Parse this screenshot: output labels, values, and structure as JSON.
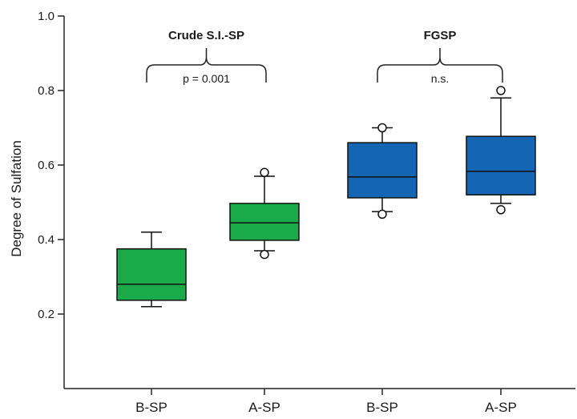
{
  "chart_data": {
    "type": "box",
    "ylabel": "Degree of Sulfation",
    "xlabel": "",
    "ylim": [
      0,
      1.0
    ],
    "y_ticks": [
      {
        "value": 0.2,
        "label": "0.2"
      },
      {
        "value": 0.4,
        "label": "0.4"
      },
      {
        "value": 0.6,
        "label": "0.6"
      },
      {
        "value": 0.8,
        "label": "0.8"
      },
      {
        "value": 1.0,
        "label": "1.0"
      }
    ],
    "categories": [
      "B-SP",
      "A-SP",
      "B-SP",
      "A-SP"
    ],
    "boxes": [
      {
        "category": "B-SP",
        "group": "Crude S.I.-SP",
        "whisker_low": 0.22,
        "q1": 0.237,
        "median": 0.28,
        "q3": 0.375,
        "whisker_high": 0.42,
        "outliers": [],
        "color": "#1aaa4a"
      },
      {
        "category": "A-SP",
        "group": "Crude S.I.-SP",
        "whisker_low": 0.37,
        "q1": 0.398,
        "median": 0.445,
        "q3": 0.497,
        "whisker_high": 0.57,
        "outliers": [
          0.36,
          0.58
        ],
        "color": "#1aaa4a"
      },
      {
        "category": "B-SP",
        "group": "FGSP",
        "whisker_low": 0.475,
        "q1": 0.512,
        "median": 0.568,
        "q3": 0.66,
        "whisker_high": 0.7,
        "outliers": [
          0.468,
          0.7
        ],
        "color": "#1466b4"
      },
      {
        "category": "A-SP",
        "group": "FGSP",
        "whisker_low": 0.497,
        "q1": 0.52,
        "median": 0.583,
        "q3": 0.677,
        "whisker_high": 0.78,
        "outliers": [
          0.48,
          0.8
        ],
        "color": "#1466b4"
      }
    ],
    "annotations": [
      {
        "group_title": "Crude S.I.-SP",
        "label": "p = 0.001",
        "spans": [
          0,
          1
        ]
      },
      {
        "group_title": "FGSP",
        "label": "n.s.",
        "spans": [
          2,
          3
        ]
      }
    ],
    "grid": false,
    "legend": "none"
  }
}
